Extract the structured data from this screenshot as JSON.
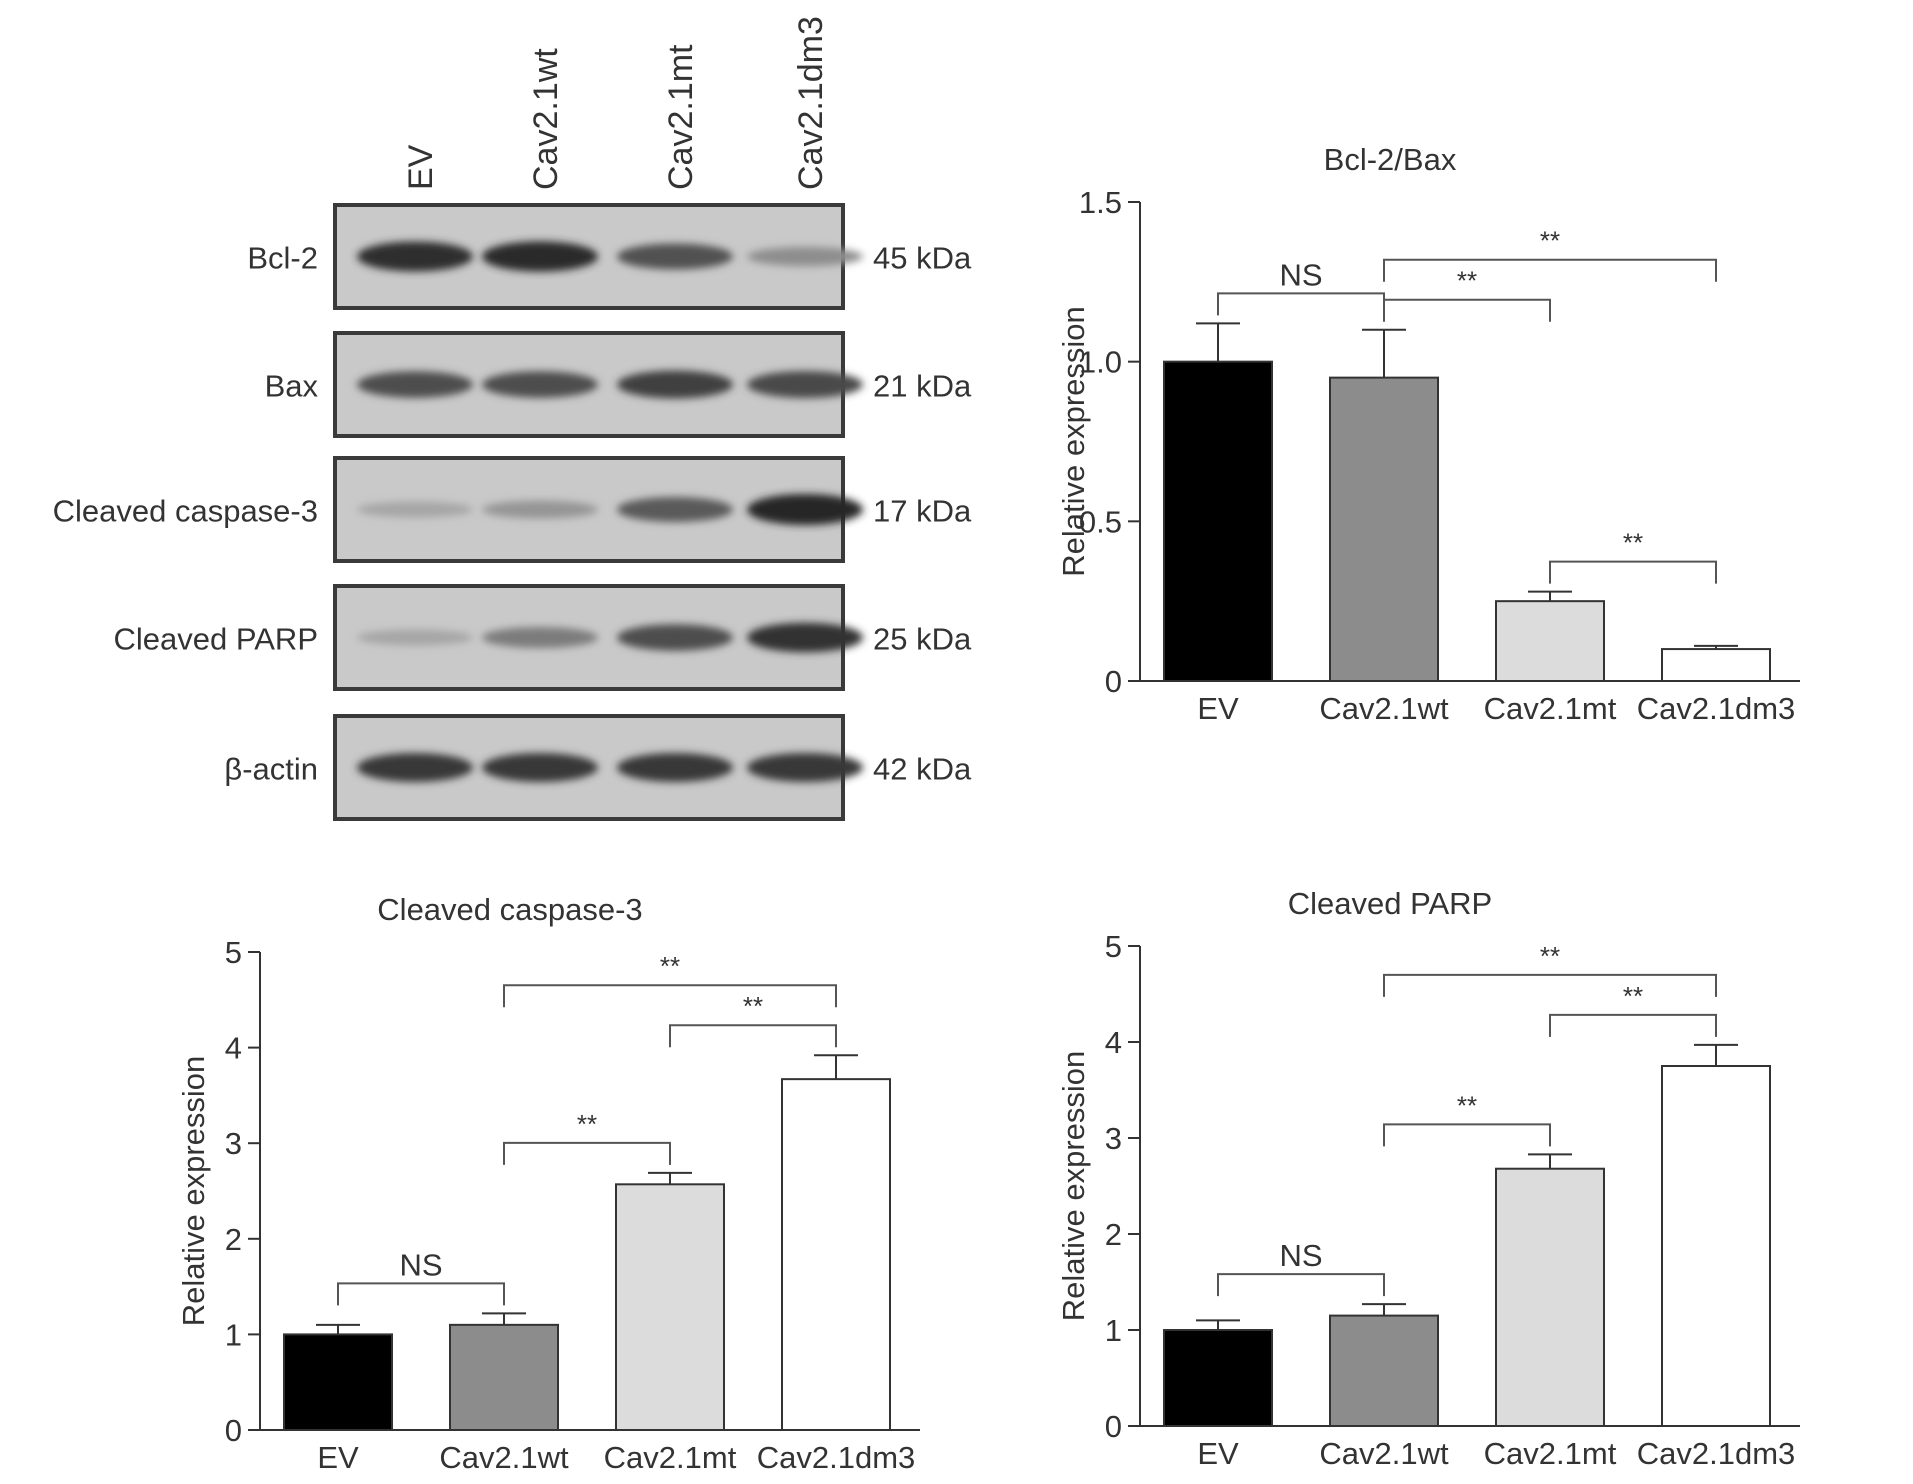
{
  "western_blot": {
    "lanes": [
      "EV",
      "Cav2.1wt",
      "Cav2.1mt",
      "Cav2.1dm3"
    ],
    "rows": [
      {
        "protein": "Bcl-2",
        "size": "45 kDa",
        "intensities": [
          0.9,
          0.92,
          0.7,
          0.35
        ]
      },
      {
        "protein": "Bax",
        "size": "21 kDa",
        "intensities": [
          0.72,
          0.72,
          0.8,
          0.75
        ]
      },
      {
        "protein": "Cleaved caspase-3",
        "size": "17 kDa",
        "intensities": [
          0.2,
          0.3,
          0.65,
          0.95
        ]
      },
      {
        "protein": "Cleaved PARP",
        "size": "25 kDa",
        "intensities": [
          0.2,
          0.45,
          0.72,
          0.88
        ]
      },
      {
        "protein": "β-actin",
        "size": "42 kDa",
        "intensities": [
          0.85,
          0.85,
          0.85,
          0.85
        ]
      }
    ]
  },
  "chart_data": [
    {
      "id": "bcl2",
      "type": "bar",
      "title": "Bcl-2/Bax",
      "ylabel": "Relative expression",
      "xlabel": "",
      "categories": [
        "EV",
        "Cav2.1wt",
        "Cav2.1mt",
        "Cav2.1dm3"
      ],
      "values": [
        1.0,
        0.95,
        0.25,
        0.1
      ],
      "errors": [
        0.12,
        0.15,
        0.03,
        0.01
      ],
      "bar_colors": [
        "#000000",
        "#8c8c8c",
        "#dcdcdc",
        "#ffffff"
      ],
      "ylim": [
        0,
        1.5
      ],
      "yticks": [
        0,
        0.5,
        1.0,
        1.5
      ],
      "ytick_labels": [
        "0",
        "0.5",
        "1.0",
        "1.5"
      ],
      "significance": [
        {
          "from": 0,
          "to": 1,
          "label": "NS"
        },
        {
          "from": 1,
          "to": 2,
          "label": "**"
        },
        {
          "from": 1,
          "to": 3,
          "label": "**"
        },
        {
          "from": 2,
          "to": 3,
          "label": "**"
        }
      ]
    },
    {
      "id": "casp3",
      "type": "bar",
      "title": "Cleaved caspase-3",
      "ylabel": "Relative expression",
      "xlabel": "",
      "categories": [
        "EV",
        "Cav2.1wt",
        "Cav2.1mt",
        "Cav2.1dm3"
      ],
      "values": [
        1.0,
        1.1,
        2.57,
        3.67
      ],
      "errors": [
        0.1,
        0.12,
        0.12,
        0.25
      ],
      "bar_colors": [
        "#000000",
        "#8c8c8c",
        "#dcdcdc",
        "#ffffff"
      ],
      "ylim": [
        0,
        5
      ],
      "yticks": [
        0,
        1,
        2,
        3,
        4,
        5
      ],
      "ytick_labels": [
        "0",
        "1",
        "2",
        "3",
        "4",
        "5"
      ],
      "significance": [
        {
          "from": 0,
          "to": 1,
          "label": "NS"
        },
        {
          "from": 1,
          "to": 2,
          "label": "**"
        },
        {
          "from": 2,
          "to": 3,
          "label": "**"
        },
        {
          "from": 1,
          "to": 3,
          "label": "**"
        }
      ]
    },
    {
      "id": "parp",
      "type": "bar",
      "title": "Cleaved PARP",
      "ylabel": "Relative expression",
      "xlabel": "",
      "categories": [
        "EV",
        "Cav2.1wt",
        "Cav2.1mt",
        "Cav2.1dm3"
      ],
      "values": [
        1.0,
        1.15,
        2.68,
        3.75
      ],
      "errors": [
        0.1,
        0.12,
        0.15,
        0.22
      ],
      "bar_colors": [
        "#000000",
        "#8c8c8c",
        "#dcdcdc",
        "#ffffff"
      ],
      "ylim": [
        0,
        5
      ],
      "yticks": [
        0,
        1,
        2,
        3,
        4,
        5
      ],
      "ytick_labels": [
        "0",
        "1",
        "2",
        "3",
        "4",
        "5"
      ],
      "significance": [
        {
          "from": 0,
          "to": 1,
          "label": "NS"
        },
        {
          "from": 1,
          "to": 2,
          "label": "**"
        },
        {
          "from": 2,
          "to": 3,
          "label": "**"
        },
        {
          "from": 1,
          "to": 3,
          "label": "**"
        }
      ]
    }
  ]
}
